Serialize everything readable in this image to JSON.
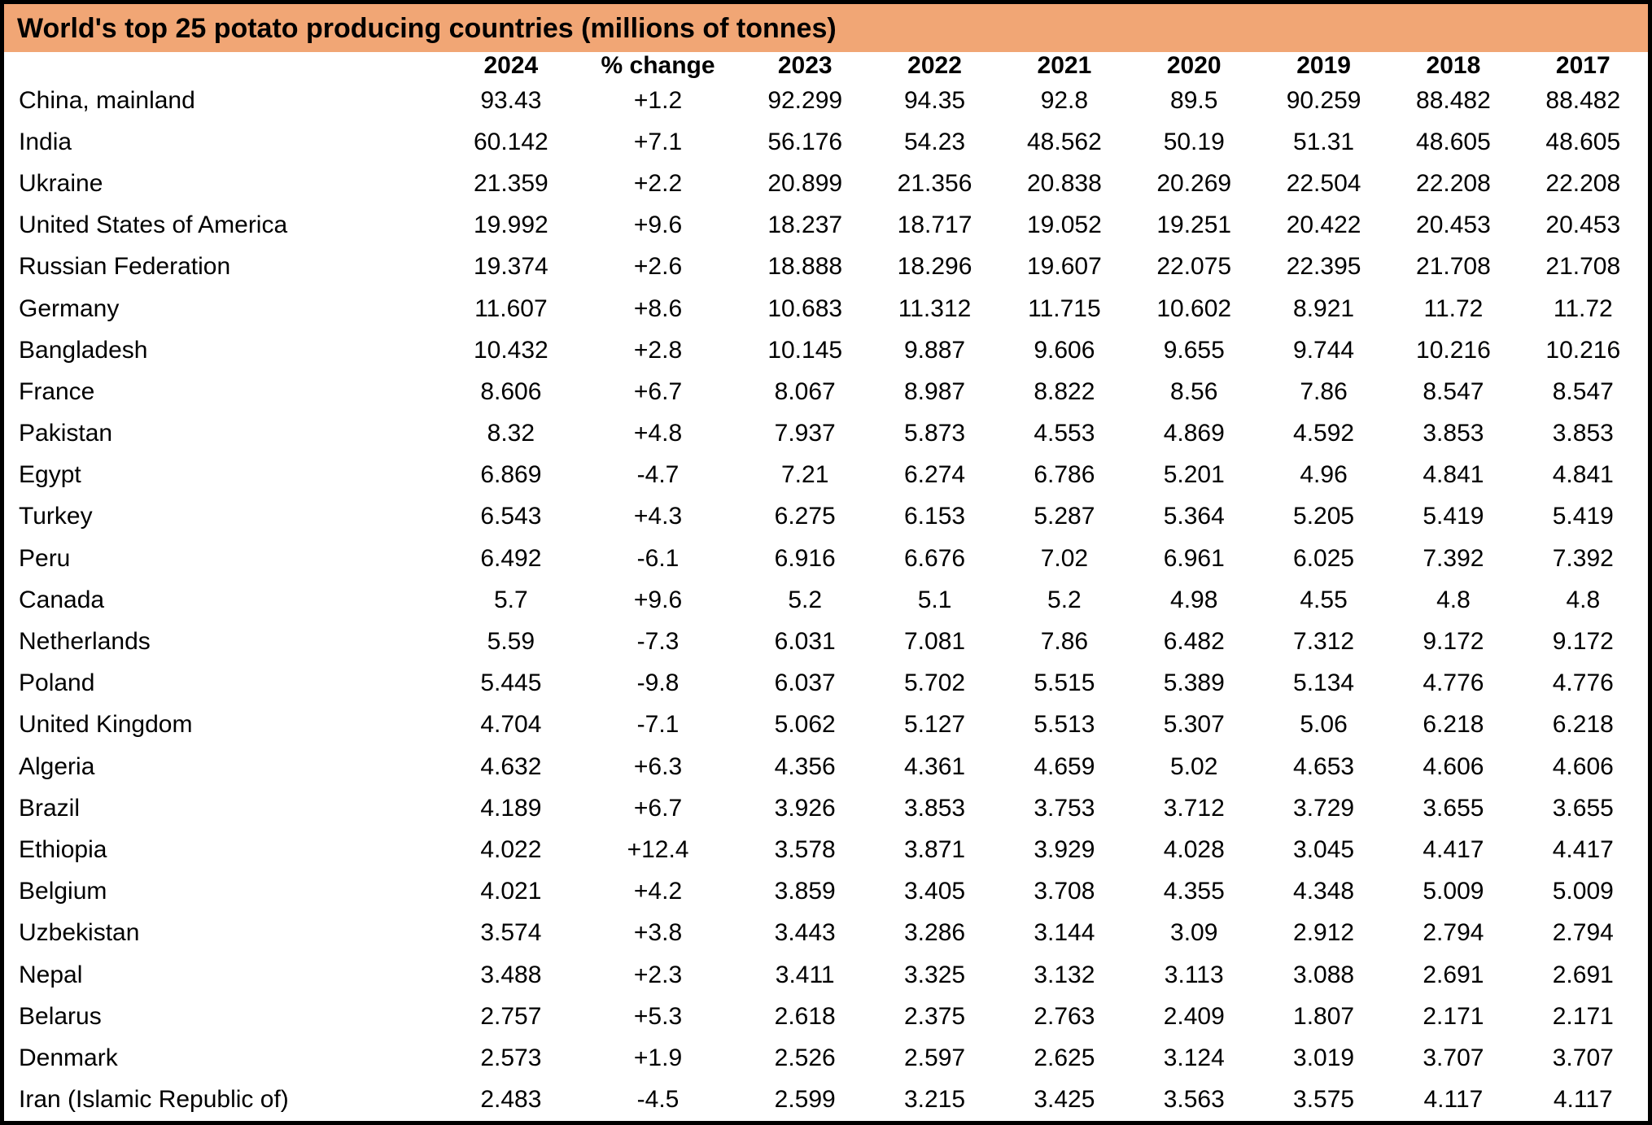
{
  "colors": {
    "title_background": "#F1A675",
    "text": "#000000",
    "border": "#000000",
    "table_background": "#FFFFFF"
  },
  "chart_data": {
    "type": "table",
    "title": "World's top 25 potato producing countries (millions of tonnes)",
    "columns": [
      "",
      "2024",
      "% change",
      "2023",
      "2022",
      "2021",
      "2020",
      "2019",
      "2018",
      "2017"
    ],
    "rows": [
      {
        "country": "China, mainland",
        "values": [
          93.43,
          "+1.2",
          92.299,
          94.35,
          92.8,
          89.5,
          90.259,
          88.482,
          88.482
        ]
      },
      {
        "country": "India",
        "values": [
          60.142,
          "+7.1",
          56.176,
          54.23,
          48.562,
          50.19,
          51.31,
          48.605,
          48.605
        ]
      },
      {
        "country": "Ukraine",
        "values": [
          21.359,
          "+2.2",
          20.899,
          21.356,
          20.838,
          20.269,
          22.504,
          22.208,
          22.208
        ]
      },
      {
        "country": "United States of America",
        "values": [
          19.992,
          "+9.6",
          18.237,
          18.717,
          19.052,
          19.251,
          20.422,
          20.453,
          20.453
        ]
      },
      {
        "country": "Russian Federation",
        "values": [
          19.374,
          "+2.6",
          18.888,
          18.296,
          19.607,
          22.075,
          22.395,
          21.708,
          21.708
        ]
      },
      {
        "country": "Germany",
        "values": [
          11.607,
          "+8.6",
          10.683,
          11.312,
          11.715,
          10.602,
          8.921,
          11.72,
          11.72
        ]
      },
      {
        "country": "Bangladesh",
        "values": [
          10.432,
          "+2.8",
          10.145,
          9.887,
          9.606,
          9.655,
          9.744,
          10.216,
          10.216
        ]
      },
      {
        "country": "France",
        "values": [
          8.606,
          "+6.7",
          8.067,
          8.987,
          8.822,
          8.56,
          7.86,
          8.547,
          8.547
        ]
      },
      {
        "country": "Pakistan",
        "values": [
          8.32,
          "+4.8",
          7.937,
          5.873,
          4.553,
          4.869,
          4.592,
          3.853,
          3.853
        ]
      },
      {
        "country": "Egypt",
        "values": [
          6.869,
          "-4.7",
          7.21,
          6.274,
          6.786,
          5.201,
          4.96,
          4.841,
          4.841
        ]
      },
      {
        "country": "Turkey",
        "values": [
          6.543,
          "+4.3",
          6.275,
          6.153,
          5.287,
          5.364,
          5.205,
          5.419,
          5.419
        ]
      },
      {
        "country": "Peru",
        "values": [
          6.492,
          "-6.1",
          6.916,
          6.676,
          7.02,
          6.961,
          6.025,
          7.392,
          7.392
        ]
      },
      {
        "country": "Canada",
        "values": [
          5.7,
          "+9.6",
          5.2,
          5.1,
          5.2,
          4.98,
          4.55,
          4.8,
          4.8
        ]
      },
      {
        "country": "Netherlands",
        "values": [
          5.59,
          "-7.3",
          6.031,
          7.081,
          7.86,
          6.482,
          7.312,
          9.172,
          9.172
        ]
      },
      {
        "country": "Poland",
        "values": [
          5.445,
          "-9.8",
          6.037,
          5.702,
          5.515,
          5.389,
          5.134,
          4.776,
          4.776
        ]
      },
      {
        "country": "United Kingdom",
        "values": [
          4.704,
          "-7.1",
          5.062,
          5.127,
          5.513,
          5.307,
          5.06,
          6.218,
          6.218
        ]
      },
      {
        "country": "Algeria",
        "values": [
          4.632,
          "+6.3",
          4.356,
          4.361,
          4.659,
          5.02,
          4.653,
          4.606,
          4.606
        ]
      },
      {
        "country": "Brazil",
        "values": [
          4.189,
          "+6.7",
          3.926,
          3.853,
          3.753,
          3.712,
          3.729,
          3.655,
          3.655
        ]
      },
      {
        "country": "Ethiopia",
        "values": [
          4.022,
          "+12.4",
          3.578,
          3.871,
          3.929,
          4.028,
          3.045,
          4.417,
          4.417
        ]
      },
      {
        "country": "Belgium",
        "values": [
          4.021,
          "+4.2",
          3.859,
          3.405,
          3.708,
          4.355,
          4.348,
          5.009,
          5.009
        ]
      },
      {
        "country": "Uzbekistan",
        "values": [
          3.574,
          "+3.8",
          3.443,
          3.286,
          3.144,
          3.09,
          2.912,
          2.794,
          2.794
        ]
      },
      {
        "country": "Nepal",
        "values": [
          3.488,
          "+2.3",
          3.411,
          3.325,
          3.132,
          3.113,
          3.088,
          2.691,
          2.691
        ]
      },
      {
        "country": "Belarus",
        "values": [
          2.757,
          "+5.3",
          2.618,
          2.375,
          2.763,
          2.409,
          1.807,
          2.171,
          2.171
        ]
      },
      {
        "country": "Denmark",
        "values": [
          2.573,
          "+1.9",
          2.526,
          2.597,
          2.625,
          3.124,
          3.019,
          3.707,
          3.707
        ]
      },
      {
        "country": "Iran (Islamic Republic of)",
        "values": [
          2.483,
          "-4.5",
          2.599,
          3.215,
          3.425,
          3.563,
          3.575,
          4.117,
          4.117
        ]
      }
    ]
  }
}
